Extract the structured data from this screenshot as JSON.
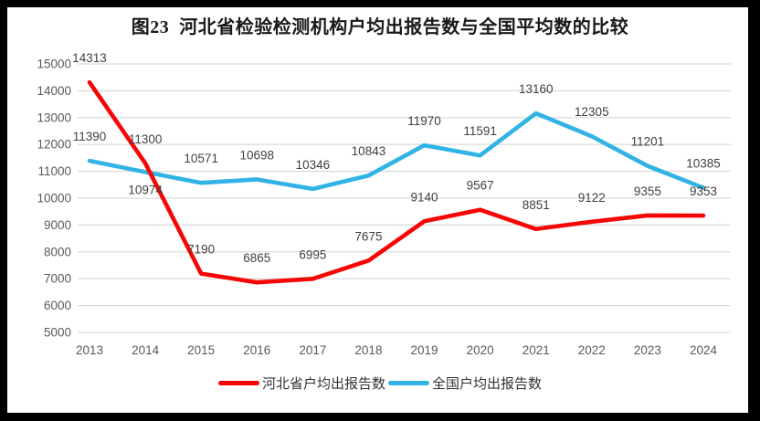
{
  "title": "图23  河北省检验检测机构户均出报告数与全国平均数的比较",
  "chart_data": {
    "type": "line",
    "categories": [
      "2013",
      "2014",
      "2015",
      "2016",
      "2017",
      "2018",
      "2019",
      "2020",
      "2021",
      "2022",
      "2023",
      "2024"
    ],
    "series": [
      {
        "name": "河北省户均出报告数",
        "color": "#f70505",
        "values": [
          14313,
          11300,
          7190,
          6865,
          6995,
          7675,
          9140,
          9567,
          8851,
          9122,
          9355,
          9353
        ]
      },
      {
        "name": "全国户均出报告数",
        "color": "#32b3e5",
        "values": [
          11390,
          10974,
          10571,
          10698,
          10346,
          10843,
          11970,
          11591,
          13160,
          12305,
          11201,
          10385
        ]
      }
    ],
    "title": "图23  河北省检验检测机构户均出报告数与全国平均数的比较",
    "xlabel": "",
    "ylabel": "",
    "ylim": [
      5000,
      15000
    ],
    "ytick_step": 1000,
    "grid": true,
    "data_labels": true,
    "legend_position": "bottom",
    "label_position_overrides": [
      {
        "series": 1,
        "index": 1,
        "position": "below"
      }
    ]
  },
  "styles": {
    "gridline_color": "#d9d9d9",
    "axis_text_color": "#595959",
    "data_label_color": "#404040",
    "frame_color": "#000000",
    "background": "#ffffff",
    "title_color": "#1a1a1a"
  }
}
